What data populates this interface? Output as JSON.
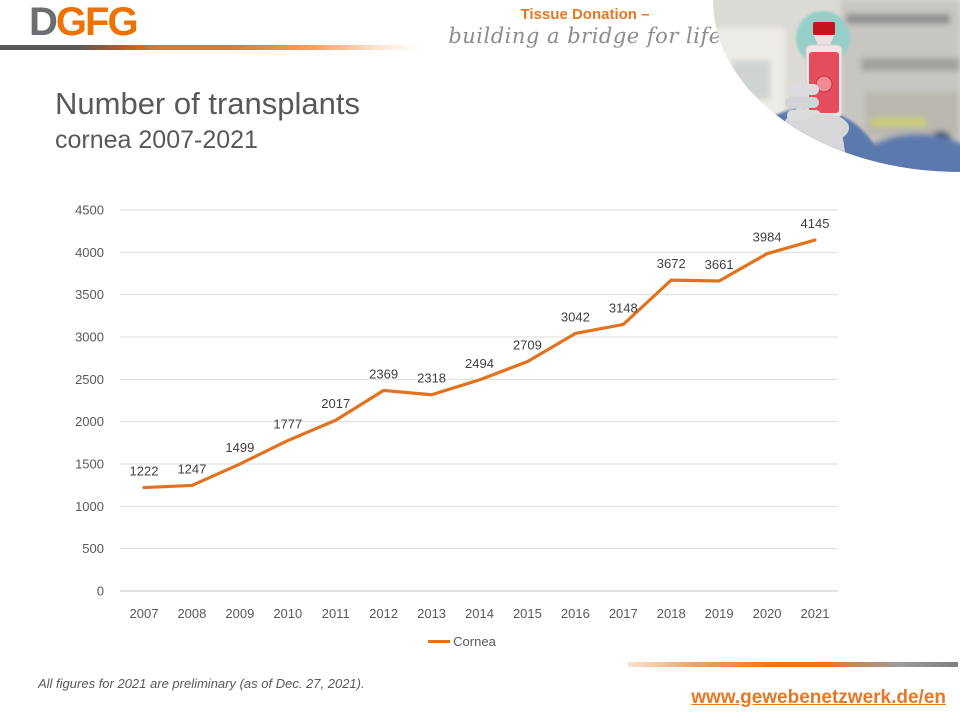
{
  "header": {
    "logo_part_gray": "D",
    "logo_part_orange": "GFG",
    "tagline_title": "Tissue Donation –",
    "tagline_subtitle": "building a bridge for life"
  },
  "title": {
    "line1": "Number of transplants",
    "line2": "cornea 2007-2021"
  },
  "chart_data": {
    "type": "line",
    "title": "Number of transplants cornea 2007-2021",
    "x": [
      "2007",
      "2008",
      "2009",
      "2010",
      "2011",
      "2012",
      "2013",
      "2014",
      "2015",
      "2016",
      "2017",
      "2018",
      "2019",
      "2020",
      "2021"
    ],
    "series": [
      {
        "name": "Cornea",
        "color": "#E1731F",
        "values": [
          1222,
          1247,
          1499,
          1777,
          2017,
          2369,
          2318,
          2494,
          2709,
          3042,
          3148,
          3672,
          3661,
          3984,
          4145
        ]
      }
    ],
    "ylim": [
      0,
      4500
    ],
    "ytick_step": 500,
    "grid": true,
    "data_labels": true,
    "legend_position": "bottom"
  },
  "legend": {
    "label": "Cornea"
  },
  "footer": {
    "note": "All figures for 2021 are preliminary (as of Dec. 27, 2021).",
    "url": "www.gewebenetzwerk.de/en"
  },
  "colors": {
    "brand_orange": "#E87722",
    "brand_gray": "#6D6E71",
    "text_gray": "#595959",
    "gridline": "#DEDEDE"
  }
}
